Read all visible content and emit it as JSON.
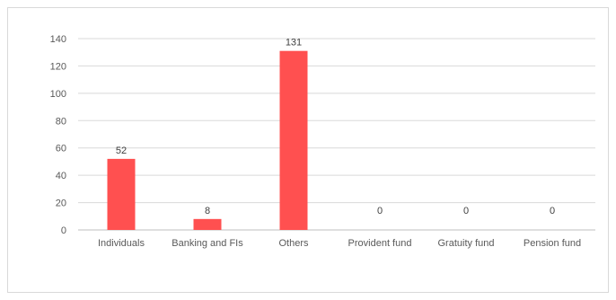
{
  "chart_data": {
    "type": "bar",
    "categories": [
      "Individuals",
      "Banking and FIs",
      "Others",
      "Provident fund",
      "Gratuity fund",
      "Pension fund"
    ],
    "values": [
      52,
      8,
      131,
      0,
      0,
      0
    ],
    "data_labels": [
      "52",
      "8",
      "131",
      "0",
      "0",
      "0"
    ],
    "ylim": [
      0,
      140
    ],
    "yticks": [
      0,
      20,
      40,
      60,
      80,
      100,
      120,
      140
    ],
    "grid": true,
    "bar_color": "#ff5050",
    "title": "",
    "xlabel": "",
    "ylabel": ""
  }
}
